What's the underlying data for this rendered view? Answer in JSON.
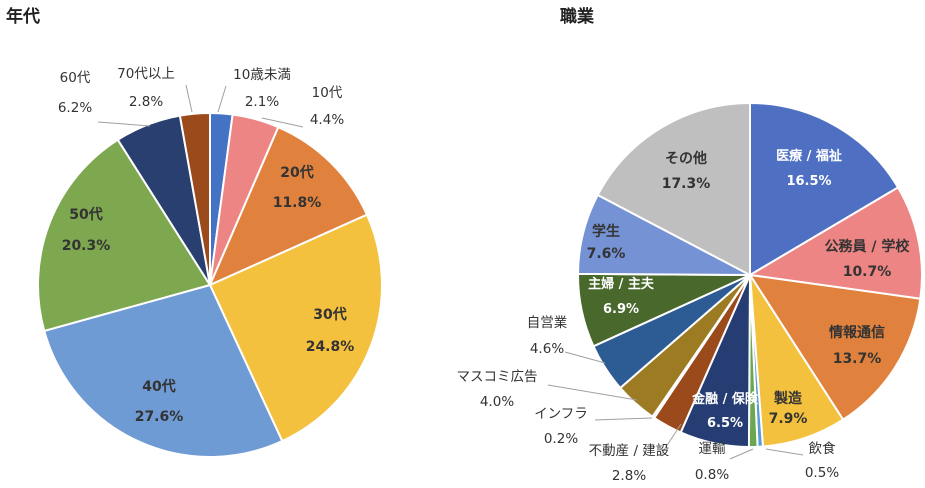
{
  "chart_data": [
    {
      "type": "pie",
      "title": "年代",
      "unit": "%",
      "start": "top, clockwise",
      "slices": [
        {
          "label": "10歳未満",
          "value": 2.1,
          "display": "2.1%",
          "color": "#4472c4"
        },
        {
          "label": "10代",
          "value": 4.4,
          "display": "4.4%",
          "color": "#ee8585"
        },
        {
          "label": "20代",
          "value": 11.8,
          "display": "11.8%",
          "color": "#e0823d"
        },
        {
          "label": "30代",
          "value": 24.8,
          "display": "24.8%",
          "color": "#f4c13f"
        },
        {
          "label": "40代",
          "value": 27.6,
          "display": "27.6%",
          "color": "#6f9bd4"
        },
        {
          "label": "50代",
          "value": 20.3,
          "display": "20.3%",
          "color": "#7ea84f"
        },
        {
          "label": "60代",
          "value": 6.2,
          "display": "6.2%",
          "color": "#283f6f"
        },
        {
          "label": "70代以上",
          "value": 2.8,
          "display": "2.8%",
          "color": "#9b4a1b"
        }
      ]
    },
    {
      "type": "pie",
      "title": "職業",
      "unit": "%",
      "start": "top, clockwise",
      "slices": [
        {
          "label": "医療 / 福祉",
          "value": 16.5,
          "display": "16.5%",
          "color": "#4e6fc2"
        },
        {
          "label": "公務員 / 学校",
          "value": 10.7,
          "display": "10.7%",
          "color": "#ee8585"
        },
        {
          "label": "情報通信",
          "value": 13.7,
          "display": "13.7%",
          "color": "#e0823d"
        },
        {
          "label": "製造",
          "value": 7.9,
          "display": "7.9%",
          "color": "#f4c13f"
        },
        {
          "label": "飲食",
          "value": 0.5,
          "display": "0.5%",
          "color": "#5b9bd5"
        },
        {
          "label": "運輸",
          "value": 0.8,
          "display": "0.8%",
          "color": "#6aa84f"
        },
        {
          "label": "金融 / 保険",
          "value": 6.5,
          "display": "6.5%",
          "color": "#263d73"
        },
        {
          "label": "不動産 / 建設",
          "value": 2.8,
          "display": "2.8%",
          "color": "#9b4a1b"
        },
        {
          "label": "インフラ",
          "value": 0.2,
          "display": "0.2%",
          "color": "#666666"
        },
        {
          "label": "マスコミ広告",
          "value": 4.0,
          "display": "4.0%",
          "color": "#9c7b22"
        },
        {
          "label": "自営業",
          "value": 4.6,
          "display": "4.6%",
          "color": "#2d5b94"
        },
        {
          "label": "主婦 / 主夫",
          "value": 6.9,
          "display": "6.9%",
          "color": "#48682c"
        },
        {
          "label": "学生",
          "value": 7.6,
          "display": "7.6%",
          "color": "#7592d4"
        },
        {
          "label": "その他",
          "value": 17.3,
          "display": "17.3%",
          "color": "#bfbfbf"
        }
      ]
    }
  ]
}
